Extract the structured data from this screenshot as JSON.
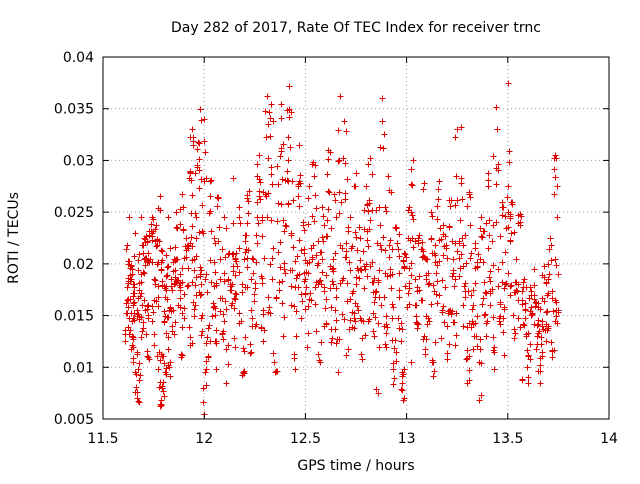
{
  "chart_data": {
    "type": "scatter",
    "title": "Day 282 of 2017, Rate Of TEC Index for receiver trnc",
    "xlabel": "GPS time / hours",
    "ylabel": "ROTI / TECUs",
    "xlim": [
      11.5,
      14
    ],
    "ylim": [
      0.005,
      0.04
    ],
    "xticks": [
      11.5,
      12,
      12.5,
      13,
      13.5,
      14
    ],
    "xtick_labels": [
      "11.5",
      "12",
      "12.5",
      "13",
      "13.5",
      "14"
    ],
    "yticks": [
      0.005,
      0.01,
      0.015,
      0.02,
      0.025,
      0.03,
      0.035,
      0.04
    ],
    "ytick_labels": [
      "0.005",
      "0.01",
      "0.015",
      "0.02",
      "0.025",
      "0.03",
      "0.035",
      "0.04"
    ],
    "grid": true,
    "marker": "plus",
    "marker_color": "#e00000",
    "x_data_range": [
      11.6,
      13.75
    ],
    "notes": "Dense cloud of approximately 1500 ROTI samples; values mostly between 0.007 and 0.03 TECU/min with peaks near 0.037 around 12.3-12.45 h and 13.5 h.",
    "series": [
      {
        "name": "ROTI",
        "points": [
          [
            11.61,
            0.0125
          ],
          [
            11.62,
            0.0218
          ],
          [
            11.62,
            0.0165
          ],
          [
            11.63,
            0.0132
          ],
          [
            11.63,
            0.0245
          ],
          [
            11.64,
            0.0118
          ],
          [
            11.64,
            0.0198
          ],
          [
            11.65,
            0.0172
          ],
          [
            11.65,
            0.0105
          ],
          [
            11.66,
            0.023
          ],
          [
            11.66,
            0.0095
          ],
          [
            11.67,
            0.007
          ],
          [
            11.67,
            0.0155
          ],
          [
            11.68,
            0.021
          ],
          [
            11.68,
            0.0088
          ],
          [
            11.69,
            0.0245
          ],
          [
            11.7,
            0.0192
          ],
          [
            11.7,
            0.0138
          ],
          [
            11.71,
            0.0227
          ],
          [
            11.72,
            0.016
          ],
          [
            11.72,
            0.011
          ],
          [
            11.73,
            0.0205
          ],
          [
            11.74,
            0.0245
          ],
          [
            11.75,
            0.0185
          ],
          [
            11.75,
            0.0122
          ],
          [
            11.76,
            0.0238
          ],
          [
            11.77,
            0.0168
          ],
          [
            11.77,
            0.0098
          ],
          [
            11.78,
            0.0266
          ],
          [
            11.78,
            0.0063
          ],
          [
            11.79,
            0.008
          ],
          [
            11.79,
            0.0212
          ],
          [
            11.8,
            0.0145
          ],
          [
            11.8,
            0.0072
          ],
          [
            11.81,
            0.0188
          ],
          [
            11.82,
            0.0118
          ],
          [
            11.82,
            0.0245
          ],
          [
            11.83,
            0.0092
          ],
          [
            11.84,
            0.0175
          ],
          [
            11.85,
            0.0205
          ],
          [
            11.85,
            0.0132
          ],
          [
            11.86,
            0.025
          ],
          [
            11.87,
            0.016
          ],
          [
            11.88,
            0.019
          ],
          [
            11.89,
            0.0112
          ],
          [
            11.89,
            0.0268
          ],
          [
            11.9,
            0.0148
          ],
          [
            11.91,
            0.0225
          ],
          [
            11.92,
            0.018
          ],
          [
            11.93,
            0.029
          ],
          [
            11.93,
            0.0122
          ],
          [
            11.94,
            0.033
          ],
          [
            11.95,
            0.0205
          ],
          [
            11.95,
            0.0156
          ],
          [
            11.96,
            0.0245
          ],
          [
            11.97,
            0.0318
          ],
          [
            11.98,
            0.017
          ],
          [
            11.98,
            0.035
          ],
          [
            11.99,
            0.0135
          ],
          [
            12.0,
            0.034
          ],
          [
            12.0,
            0.0055
          ],
          [
            12.01,
            0.019
          ],
          [
            12.02,
            0.011
          ],
          [
            12.03,
            0.028
          ],
          [
            12.04,
            0.015
          ],
          [
            12.05,
            0.0225
          ],
          [
            12.06,
            0.0098
          ],
          [
            12.07,
            0.0265
          ],
          [
            12.08,
            0.0185
          ],
          [
            12.09,
            0.0132
          ],
          [
            12.1,
            0.0245
          ],
          [
            12.11,
            0.0085
          ],
          [
            12.12,
            0.021
          ],
          [
            12.13,
            0.016
          ],
          [
            12.14,
            0.0283
          ],
          [
            12.15,
            0.012
          ],
          [
            12.16,
            0.0198
          ],
          [
            12.17,
            0.0255
          ],
          [
            12.18,
            0.0145
          ],
          [
            12.19,
            0.0095
          ],
          [
            12.2,
            0.0228
          ],
          [
            12.21,
            0.0178
          ],
          [
            12.22,
            0.027
          ],
          [
            12.23,
            0.0115
          ],
          [
            12.24,
            0.0205
          ],
          [
            12.25,
            0.014
          ],
          [
            12.26,
            0.0245
          ],
          [
            12.27,
            0.0305
          ],
          [
            12.28,
            0.0188
          ],
          [
            12.29,
            0.0125
          ],
          [
            12.3,
            0.0268
          ],
          [
            12.31,
            0.0362
          ],
          [
            12.32,
            0.0158
          ],
          [
            12.33,
            0.0355
          ],
          [
            12.34,
            0.0215
          ],
          [
            12.35,
            0.0095
          ],
          [
            12.36,
            0.0295
          ],
          [
            12.37,
            0.0175
          ],
          [
            12.38,
            0.0355
          ],
          [
            12.39,
            0.013
          ],
          [
            12.4,
            0.0238
          ],
          [
            12.41,
            0.029
          ],
          [
            12.42,
            0.0372
          ],
          [
            12.43,
            0.016
          ],
          [
            12.44,
            0.0262
          ],
          [
            12.45,
            0.0098
          ],
          [
            12.46,
            0.0208
          ],
          [
            12.47,
            0.0315
          ],
          [
            12.48,
            0.0148
          ],
          [
            12.49,
            0.024
          ],
          [
            12.5,
            0.0185
          ],
          [
            12.51,
            0.012
          ],
          [
            12.52,
            0.0275
          ],
          [
            12.53,
            0.0165
          ],
          [
            12.54,
            0.0298
          ],
          [
            12.55,
            0.0135
          ],
          [
            12.56,
            0.0222
          ],
          [
            12.57,
            0.0105
          ],
          [
            12.58,
            0.0255
          ],
          [
            12.59,
            0.0178
          ],
          [
            12.6,
            0.0142
          ],
          [
            12.61,
            0.031
          ],
          [
            12.62,
            0.0198
          ],
          [
            12.63,
            0.0128
          ],
          [
            12.64,
            0.0268
          ],
          [
            12.65,
            0.0168
          ],
          [
            12.66,
            0.0095
          ],
          [
            12.67,
            0.0362
          ],
          [
            12.68,
            0.0152
          ],
          [
            12.69,
            0.0338
          ],
          [
            12.7,
            0.0212
          ],
          [
            12.71,
            0.0118
          ],
          [
            12.72,
            0.0245
          ],
          [
            12.73,
            0.0172
          ],
          [
            12.74,
            0.0138
          ],
          [
            12.75,
            0.0288
          ],
          [
            12.76,
            0.0155
          ],
          [
            12.77,
            0.0225
          ],
          [
            12.78,
            0.0108
          ],
          [
            12.79,
            0.0198
          ],
          [
            12.8,
            0.0275
          ],
          [
            12.81,
            0.0145
          ],
          [
            12.82,
            0.0302
          ],
          [
            12.83,
            0.0182
          ],
          [
            12.84,
            0.013
          ],
          [
            12.85,
            0.0252
          ],
          [
            12.86,
            0.0075
          ],
          [
            12.87,
            0.0218
          ],
          [
            12.88,
            0.036
          ],
          [
            12.89,
            0.0168
          ],
          [
            12.9,
            0.012
          ],
          [
            12.91,
            0.0285
          ],
          [
            12.92,
            0.0195
          ],
          [
            12.93,
            0.0148
          ],
          [
            12.94,
            0.009
          ],
          [
            12.95,
            0.0235
          ],
          [
            12.96,
            0.0175
          ],
          [
            12.97,
            0.0125
          ],
          [
            12.98,
            0.0068
          ],
          [
            12.99,
            0.021
          ],
          [
            13.0,
            0.0158
          ],
          [
            13.01,
            0.0255
          ],
          [
            13.02,
            0.0105
          ],
          [
            13.03,
            0.03
          ],
          [
            13.04,
            0.0185
          ],
          [
            13.05,
            0.0138
          ],
          [
            13.06,
            0.0228
          ],
          [
            13.07,
            0.0165
          ],
          [
            13.08,
            0.0272
          ],
          [
            13.09,
            0.0118
          ],
          [
            13.1,
            0.0205
          ],
          [
            13.11,
            0.0145
          ],
          [
            13.12,
            0.025
          ],
          [
            13.13,
            0.0092
          ],
          [
            13.14,
            0.0218
          ],
          [
            13.15,
            0.0162
          ],
          [
            13.16,
            0.028
          ],
          [
            13.17,
            0.0128
          ],
          [
            13.18,
            0.0238
          ],
          [
            13.19,
            0.0178
          ],
          [
            13.2,
            0.0108
          ],
          [
            13.21,
            0.0262
          ],
          [
            13.22,
            0.0152
          ],
          [
            13.23,
            0.0205
          ],
          [
            13.24,
            0.0122
          ],
          [
            13.25,
            0.033
          ],
          [
            13.26,
            0.0188
          ],
          [
            13.27,
            0.0332
          ],
          [
            13.28,
            0.014
          ],
          [
            13.29,
            0.0228
          ],
          [
            13.3,
            0.0085
          ],
          [
            13.31,
            0.0268
          ],
          [
            13.32,
            0.017
          ],
          [
            13.33,
            0.0118
          ],
          [
            13.34,
            0.0215
          ],
          [
            13.35,
            0.015
          ],
          [
            13.36,
            0.0068
          ],
          [
            13.37,
            0.0245
          ],
          [
            13.38,
            0.0182
          ],
          [
            13.39,
            0.013
          ],
          [
            13.4,
            0.0288
          ],
          [
            13.41,
            0.016
          ],
          [
            13.42,
            0.0222
          ],
          [
            13.43,
            0.0098
          ],
          [
            13.44,
            0.0352
          ],
          [
            13.45,
            0.0195
          ],
          [
            13.46,
            0.0142
          ],
          [
            13.47,
            0.0255
          ],
          [
            13.48,
            0.0112
          ],
          [
            13.49,
            0.0235
          ],
          [
            13.5,
            0.0375
          ],
          [
            13.51,
            0.017
          ],
          [
            13.52,
            0.0258
          ],
          [
            13.53,
            0.0128
          ],
          [
            13.54,
            0.0205
          ],
          [
            13.55,
            0.0148
          ],
          [
            13.56,
            0.0248
          ],
          [
            13.57,
            0.0088
          ],
          [
            13.58,
            0.0185
          ],
          [
            13.59,
            0.0132
          ],
          [
            13.6,
            0.0085
          ],
          [
            13.61,
            0.0178
          ],
          [
            13.62,
            0.0152
          ],
          [
            13.63,
            0.0195
          ],
          [
            13.64,
            0.0118
          ],
          [
            13.65,
            0.0162
          ],
          [
            13.66,
            0.0085
          ],
          [
            13.67,
            0.014
          ],
          [
            13.68,
            0.0198
          ],
          [
            13.69,
            0.0125
          ],
          [
            13.7,
            0.0172
          ],
          [
            13.71,
            0.0225
          ],
          [
            13.72,
            0.011
          ],
          [
            13.73,
            0.0268
          ],
          [
            13.74,
            0.0302
          ],
          [
            13.74,
            0.015
          ]
        ]
      }
    ]
  }
}
